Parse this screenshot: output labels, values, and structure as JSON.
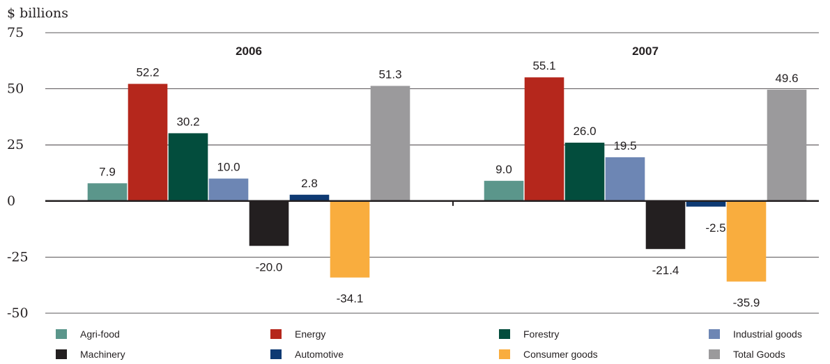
{
  "chart_data": {
    "type": "bar",
    "unit_label": "$ billions",
    "y_ticks": [
      "75",
      "50",
      "25",
      "0",
      "-25",
      "-50"
    ],
    "ylim": [
      -50,
      75
    ],
    "grid": "horizontal",
    "legend_position": "bottom",
    "categories": [
      "2006",
      "2007"
    ],
    "series": [
      {
        "name": "Agri-food",
        "color": "#5b968b",
        "values": [
          7.9,
          9.0
        ],
        "labels": [
          "7.9",
          "9.0"
        ]
      },
      {
        "name": "Energy",
        "color": "#b5271c",
        "values": [
          52.2,
          55.1
        ],
        "labels": [
          "52.2",
          "55.1"
        ]
      },
      {
        "name": "Forestry",
        "color": "#034d3d",
        "values": [
          30.2,
          26.0
        ],
        "labels": [
          "30.2",
          "26.0"
        ]
      },
      {
        "name": "Industrial goods",
        "color": "#6d86b4",
        "values": [
          10.0,
          19.5
        ],
        "labels": [
          "10.0",
          "19.5"
        ]
      },
      {
        "name": "Machinery",
        "color": "#231f20",
        "values": [
          -20.0,
          -21.4
        ],
        "labels": [
          "-20.0",
          "-21.4"
        ]
      },
      {
        "name": "Automotive",
        "color": "#0e3a73",
        "values": [
          2.8,
          -2.5
        ],
        "labels": [
          "2.8",
          "-2.5"
        ]
      },
      {
        "name": "Consumer goods",
        "color": "#f9ad3e",
        "values": [
          -34.1,
          -35.9
        ],
        "labels": [
          "-34.1",
          "-35.9"
        ]
      },
      {
        "name": "Total Goods",
        "color": "#9b9a9c",
        "values": [
          51.3,
          49.6
        ],
        "labels": [
          "51.3",
          "49.6"
        ]
      }
    ]
  }
}
